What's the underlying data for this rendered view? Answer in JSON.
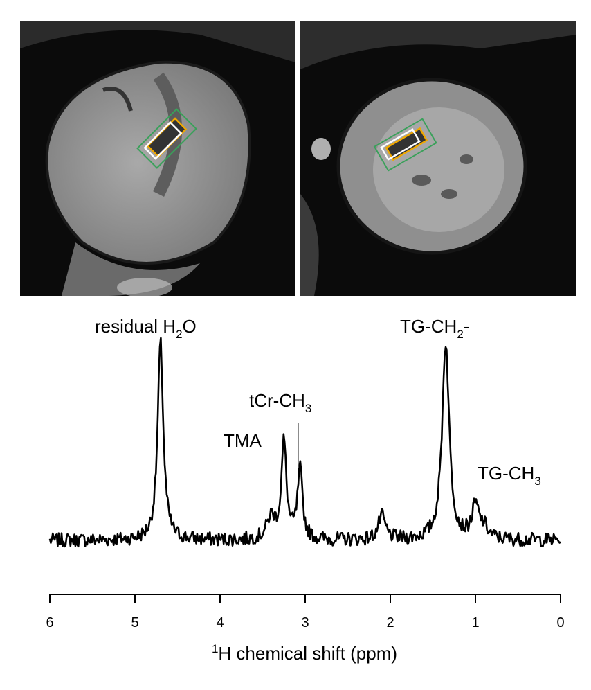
{
  "images": [
    {
      "name": "four-chamber cardiac MR image",
      "voxel_colors": [
        "#3aa05a",
        "#f0a800",
        "#ffffff"
      ]
    },
    {
      "name": "short-axis cardiac MR image",
      "voxel_colors": [
        "#3aa05a",
        "#f0a800",
        "#ffffff"
      ]
    }
  ],
  "chart_data": {
    "type": "line",
    "title": "",
    "xlabel_prefix": "1",
    "xlabel_main": "H chemical shift (ppm)",
    "xlim": [
      6,
      0
    ],
    "x_reversed": true,
    "xticks": [
      "6",
      "5",
      "4",
      "3",
      "2",
      "1",
      "0"
    ],
    "xtick_values": [
      6,
      5,
      4,
      3,
      2,
      1,
      0
    ],
    "y_axis_shown": false,
    "grid": false,
    "baseline": 0,
    "ylim": [
      -0.05,
      1.05
    ],
    "line_color": "#000000",
    "peaks": [
      {
        "label_pre": "residual H",
        "label_sub": "2",
        "label_post": "O",
        "ppm": 4.7,
        "height": 1.0,
        "width": 0.04
      },
      {
        "label_pre": "TMA",
        "label_sub": "",
        "label_post": "",
        "ppm": 3.25,
        "height": 0.49,
        "width": 0.035
      },
      {
        "label_pre": "tCr-CH",
        "label_sub": "3",
        "label_post": "",
        "ppm": 3.06,
        "height": 0.35,
        "width": 0.035
      },
      {
        "label_pre": "TG-CH",
        "label_sub": "2",
        "label_post": "-",
        "ppm": 1.35,
        "height": 1.0,
        "width": 0.05
      },
      {
        "label_pre": "TG-CH",
        "label_sub": "3",
        "label_post": "",
        "ppm": 0.9,
        "height": 0.05,
        "width": 0.06
      }
    ],
    "small_bumps": [
      {
        "ppm": 2.1,
        "height": 0.12,
        "width": 0.05
      },
      {
        "ppm": 3.4,
        "height": 0.11,
        "width": 0.06
      },
      {
        "ppm": 1.0,
        "height": 0.16,
        "width": 0.05
      }
    ]
  }
}
